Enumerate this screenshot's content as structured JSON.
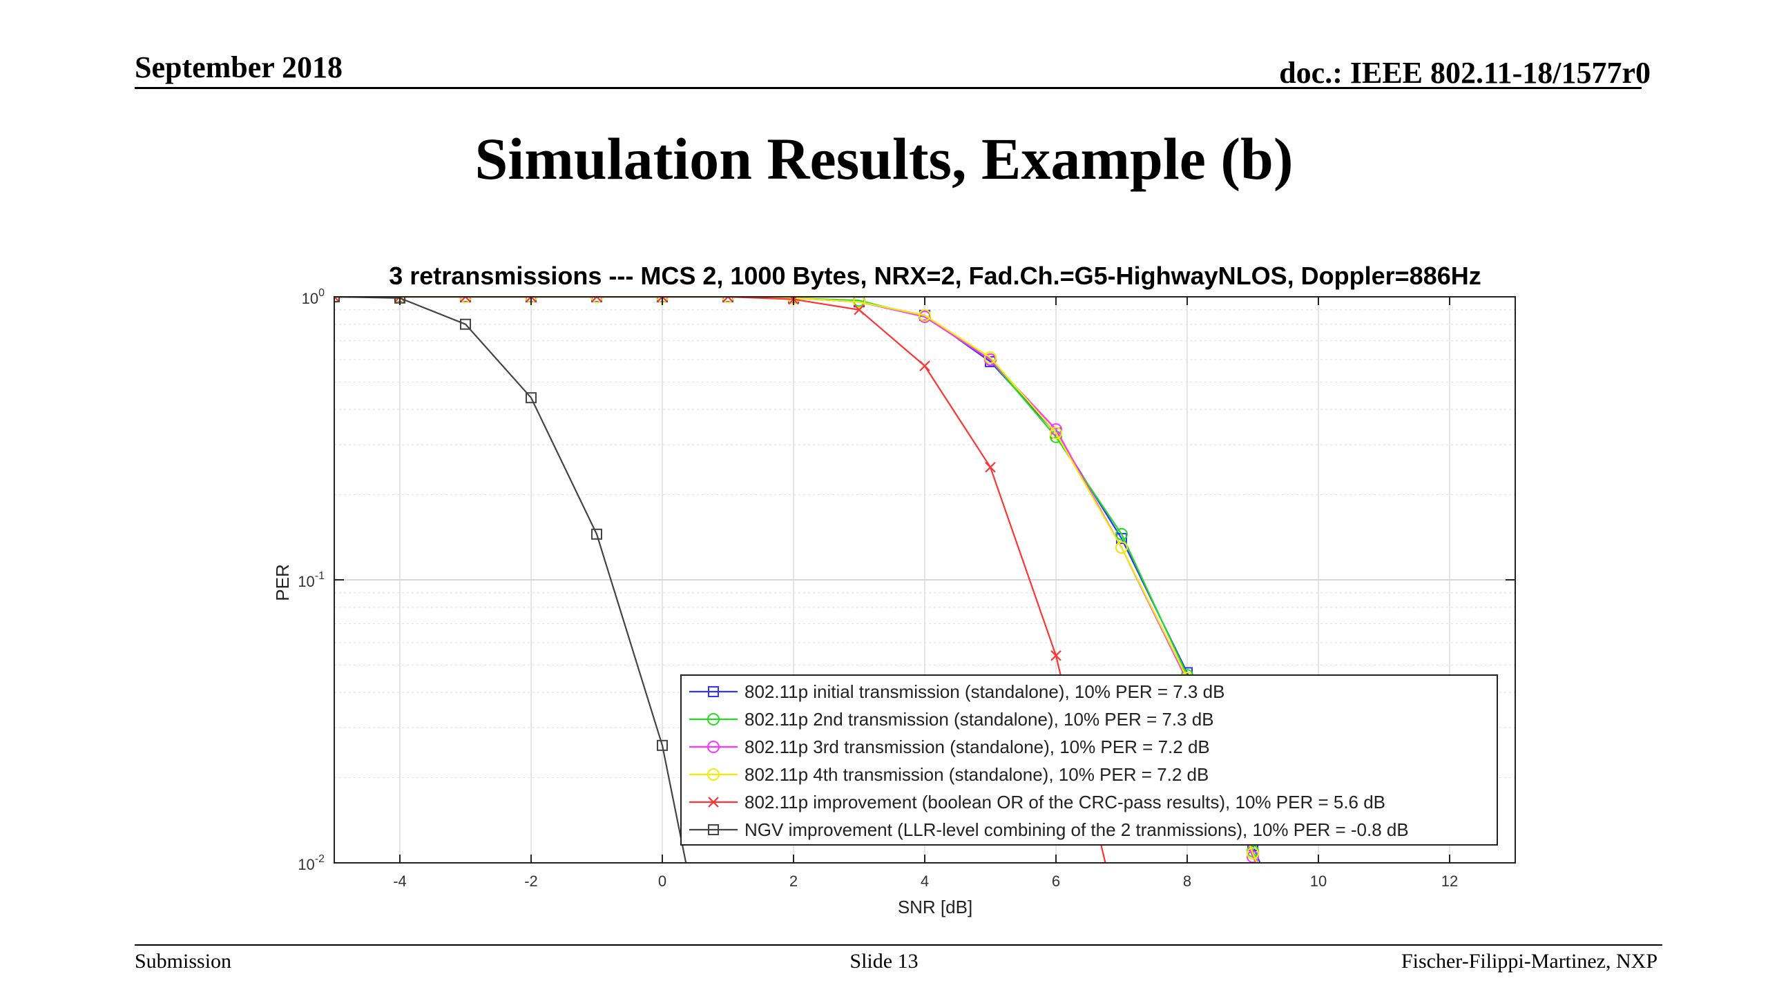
{
  "header": {
    "date": "September 2018",
    "doc": "doc.: IEEE 802.11-18/1577r0"
  },
  "slide_title": "Simulation Results, Example (b)",
  "footer": {
    "left": "Submission",
    "center": "Slide 13",
    "right": "Fischer-Filippi-Martinez, NXP"
  },
  "chart_data": {
    "type": "line",
    "title": "3 retransmissions --- MCS 2, 1000 Bytes, NRX=2, Fad.Ch.=G5-HighwayNLOS, Doppler=886Hz",
    "xlabel": "SNR [dB]",
    "ylabel": "PER",
    "xlim": [
      -5,
      13
    ],
    "ylim": [
      0.01,
      1
    ],
    "yscale": "log",
    "xticks": [
      -4,
      -2,
      0,
      2,
      4,
      6,
      8,
      10,
      12
    ],
    "yticks": [
      {
        "value": 1,
        "base": "10",
        "exp": "0"
      },
      {
        "value": 0.1,
        "base": "10",
        "exp": "-1"
      },
      {
        "value": 0.01,
        "base": "10",
        "exp": "-2"
      }
    ],
    "grid": true,
    "legend_position": "bottom-right",
    "series": [
      {
        "name": "802.11p initial transmission (standalone), 10% PER = 7.3 dB",
        "color": "#3333ff",
        "marker": "square",
        "x": [
          -5,
          -4,
          -3,
          -2,
          -1,
          0,
          1,
          2,
          3,
          4,
          5,
          6,
          7,
          8,
          9,
          9.15
        ],
        "y": [
          1,
          1,
          1,
          1,
          1,
          1,
          1,
          0.99,
          0.96,
          0.86,
          0.59,
          0.33,
          0.14,
          0.047,
          0.0115,
          0.0095
        ]
      },
      {
        "name": "802.11p 2nd transmission (standalone), 10% PER = 7.3 dB",
        "color": "#22dd22",
        "marker": "circle",
        "x": [
          -5,
          -4,
          -3,
          -2,
          -1,
          0,
          1,
          2,
          3,
          4,
          5,
          6,
          7,
          8,
          9,
          9.15
        ],
        "y": [
          1,
          1,
          1,
          1,
          1,
          1,
          1,
          0.99,
          0.97,
          0.85,
          0.6,
          0.32,
          0.145,
          0.046,
          0.011,
          0.009
        ]
      },
      {
        "name": "802.11p 3rd transmission (standalone), 10% PER = 7.2 dB",
        "color": "#ff33ff",
        "marker": "circle",
        "x": [
          -5,
          -4,
          -3,
          -2,
          -1,
          0,
          1,
          2,
          3,
          4,
          5,
          6,
          7,
          8,
          9,
          9.15
        ],
        "y": [
          1,
          1,
          1,
          1,
          1,
          1,
          1,
          0.99,
          0.96,
          0.85,
          0.6,
          0.34,
          0.13,
          0.044,
          0.0105,
          0.009
        ]
      },
      {
        "name": "802.11p 4th transmission (standalone), 10% PER = 7.2 dB",
        "color": "#eeee00",
        "marker": "circle",
        "x": [
          -5,
          -4,
          -3,
          -2,
          -1,
          0,
          1,
          2,
          3,
          4,
          5,
          6,
          7,
          8,
          9,
          9.15
        ],
        "y": [
          1,
          1,
          1,
          1,
          1,
          1,
          1,
          0.99,
          0.96,
          0.86,
          0.61,
          0.33,
          0.13,
          0.045,
          0.0108,
          0.009
        ]
      },
      {
        "name": "802.11p improvement (boolean OR of the CRC-pass results), 10% PER = 5.6 dB",
        "color": "#ff3333",
        "marker": "x",
        "x": [
          -5,
          -4,
          -3,
          -2,
          -1,
          0,
          1,
          2,
          3,
          4,
          5,
          6,
          6.8
        ],
        "y": [
          1,
          1,
          1,
          1,
          1,
          1,
          1,
          0.98,
          0.9,
          0.57,
          0.25,
          0.054,
          0.009
        ]
      },
      {
        "name": "NGV improvement (LLR-level combining of the 2 tranmissions), 10% PER = -0.8 dB",
        "color": "#444444",
        "marker": "square",
        "x": [
          -5,
          -4,
          -3,
          -2,
          -1,
          0,
          0.4
        ],
        "y": [
          1,
          0.99,
          0.8,
          0.44,
          0.145,
          0.026,
          0.009
        ]
      }
    ]
  }
}
